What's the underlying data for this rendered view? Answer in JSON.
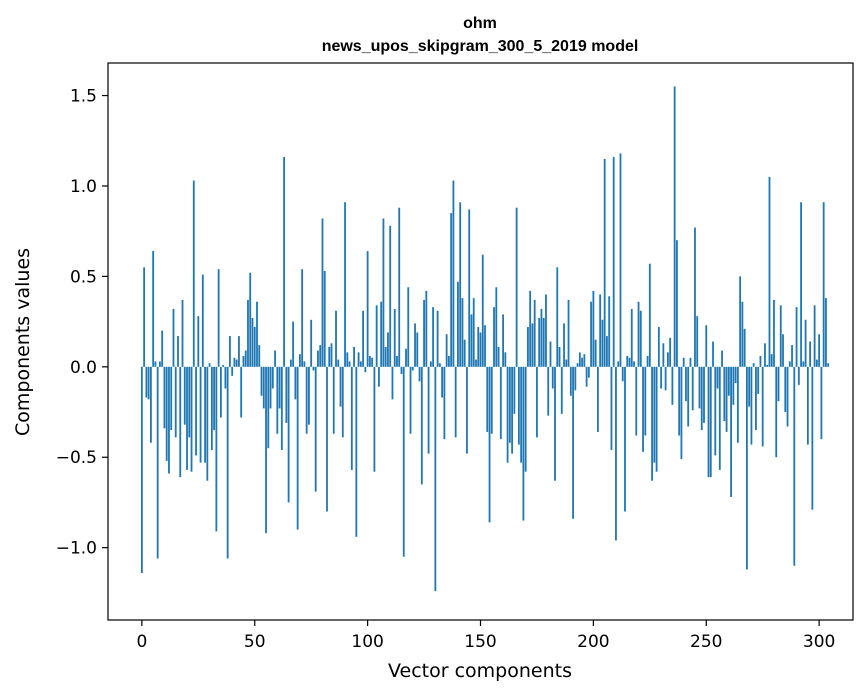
{
  "chart_data": {
    "type": "bar",
    "title_line1": "ohm",
    "title_line2": "news_upos_skipgram_300_5_2019 model",
    "xlabel": "Vector components",
    "ylabel": "Components values",
    "xlim": [
      -15,
      315
    ],
    "ylim": [
      -1.4,
      1.68
    ],
    "xticks": [
      0,
      50,
      100,
      150,
      200,
      250,
      300
    ],
    "xtick_labels": [
      "0",
      "50",
      "100",
      "150",
      "200",
      "250",
      "300"
    ],
    "yticks": [
      -1.0,
      -0.5,
      0.0,
      0.5,
      1.0,
      1.5
    ],
    "ytick_labels": [
      "−1.0",
      "−0.5",
      "0.0",
      "0.5",
      "1.0",
      "1.5"
    ],
    "bar_color": "#1f77b4",
    "values": [
      -1.14,
      0.55,
      -0.17,
      -0.18,
      -0.42,
      0.64,
      0.03,
      -1.06,
      0.03,
      0.2,
      -0.34,
      -0.52,
      -0.59,
      -0.35,
      0.32,
      -0.39,
      0.17,
      -0.61,
      0.37,
      -0.32,
      -0.57,
      -0.39,
      -0.58,
      1.03,
      -0.49,
      0.28,
      -0.53,
      0.51,
      -0.53,
      -0.63,
      0.02,
      -0.46,
      -0.35,
      -0.91,
      0.54,
      -0.28,
      0.01,
      -0.12,
      -1.06,
      0.17,
      -0.05,
      0.05,
      0.04,
      0.17,
      -0.28,
      0.06,
      0.09,
      0.37,
      0.52,
      0.27,
      0.22,
      0.36,
      0.12,
      -0.16,
      -0.23,
      -0.92,
      -0.45,
      -0.23,
      -0.12,
      0.09,
      -0.37,
      -0.23,
      -0.46,
      1.16,
      -0.31,
      -0.75,
      0.04,
      0.25,
      -0.18,
      -0.9,
      0.07,
      0.54,
      0.03,
      -0.37,
      -0.32,
      0.26,
      -0.02,
      -0.69,
      0.09,
      0.12,
      0.82,
      0.53,
      -0.8,
      0.11,
      0.13,
      -0.37,
      0.31,
      0.04,
      -0.22,
      -0.39,
      0.91,
      0.08,
      0.03,
      -0.57,
      0.11,
      -0.94,
      0.08,
      0.03,
      0.31,
      -0.03,
      0.64,
      0.06,
      0.05,
      -0.58,
      0.34,
      -0.11,
      0.36,
      0.82,
      0.11,
      0.19,
      0.78,
      -0.18,
      0.32,
      0.06,
      0.88,
      -0.04,
      -1.05,
      0.1,
      0.44,
      -0.37,
      -0.02,
      0.24,
      0.19,
      -0.08,
      -0.65,
      0.37,
      0.42,
      -0.48,
      0.03,
      0.33,
      -1.24,
      0.31,
      0.02,
      -0.17,
      -0.4,
      0.18,
      0.06,
      0.85,
      1.03,
      -0.39,
      0.47,
      0.91,
      0.38,
      0.15,
      -0.48,
      0.87,
      0.29,
      0.38,
      0.04,
      0.22,
      0.19,
      0.62,
      0.23,
      -0.36,
      -0.86,
      -0.37,
      0.33,
      0.44,
      0.11,
      -0.4,
      0.29,
      0.08,
      -0.53,
      -0.42,
      -0.48,
      -0.26,
      0.88,
      -0.43,
      -0.53,
      -0.85,
      -0.58,
      0.22,
      0.42,
      0.24,
      0.37,
      -0.39,
      0.27,
      0.32,
      0.27,
      0.4,
      -0.27,
      0.14,
      -0.12,
      -0.63,
      0.55,
      0.11,
      -0.26,
      0.24,
      0.04,
      0.37,
      -0.16,
      -0.84,
      -0.13,
      0.02,
      0.08,
      0.05,
      0.07,
      -0.11,
      -0.06,
      0.36,
      0.42,
      0.15,
      -0.36,
      0.4,
      0.26,
      1.15,
      0.17,
      0.39,
      -0.46,
      1.16,
      -0.96,
      0.03,
      1.18,
      -0.08,
      -0.8,
      0.06,
      0.05,
      0.32,
      0.03,
      -0.38,
      0.36,
      0.31,
      -0.47,
      -0.38,
      0.06,
      0.57,
      -0.63,
      -0.53,
      -0.58,
      0.22,
      -0.12,
      0.13,
      -0.13,
      0.08,
      0.16,
      -0.21,
      1.55,
      0.7,
      -0.38,
      -0.51,
      0.05,
      -0.19,
      -0.33,
      0.05,
      -0.24,
      0.77,
      0.28,
      -0.23,
      -0.35,
      -0.31,
      0.23,
      -0.61,
      -0.61,
      0.14,
      -0.49,
      -0.12,
      -0.57,
      0.09,
      -0.3,
      -0.36,
      -0.16,
      -0.72,
      -0.21,
      -0.09,
      -0.42,
      0.5,
      0.36,
      0.21,
      -1.12,
      -0.22,
      -0.43,
      0.02,
      -0.35,
      -0.15,
      0.06,
      -0.44,
      0.13,
      0.01,
      1.05,
      0.07,
      0.37,
      -0.5,
      -0.19,
      0.34,
      0.18,
      -0.25,
      -0.33,
      0.03,
      0.12,
      -1.1,
      0.33,
      -0.1,
      0.91,
      0.03,
      0.26,
      -0.43,
      0.14,
      -0.79,
      0.34,
      0.04,
      0.18,
      -0.4,
      0.91,
      0.38,
      0.02
    ]
  }
}
